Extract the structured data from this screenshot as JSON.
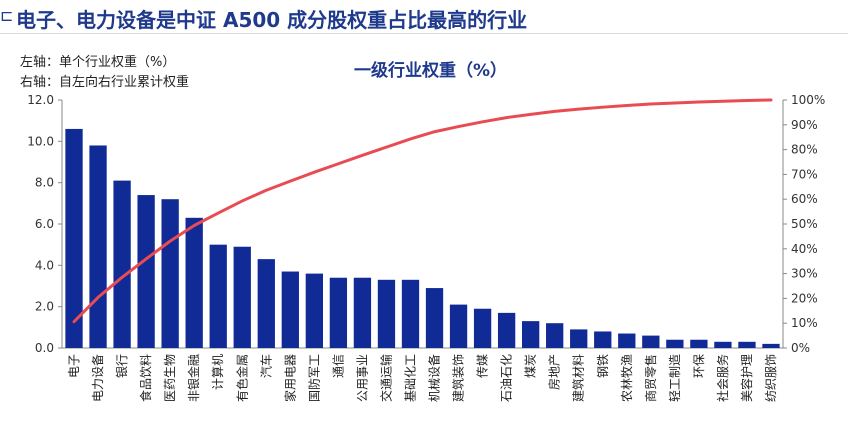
{
  "header": {
    "title": "电子、电力设备是中证 A500 成分股权重占比最高的行业"
  },
  "notes": {
    "left_axis": "左轴：单个行业权重（%）",
    "right_axis": "右轴：自左向右行业累计权重"
  },
  "chart_data": {
    "type": "bar",
    "title": "一级行业权重（%）",
    "categories": [
      "电子",
      "电力设备",
      "银行",
      "食品饮料",
      "医药生物",
      "非银金融",
      "计算机",
      "有色金属",
      "汽车",
      "家用电器",
      "国防军工",
      "通信",
      "公用事业",
      "交通运输",
      "基础化工",
      "机械设备",
      "建筑装饰",
      "传媒",
      "石油石化",
      "煤炭",
      "房地产",
      "建筑材料",
      "钢铁",
      "农林牧渔",
      "商贸零售",
      "轻工制造",
      "环保",
      "社会服务",
      "美容护理",
      "纺织服饰"
    ],
    "series": [
      {
        "values": [
          10.6,
          9.8,
          8.1,
          7.4,
          7.2,
          6.3,
          5.0,
          4.9,
          4.3,
          3.7,
          3.6,
          3.4,
          3.4,
          3.3,
          3.3,
          2.9,
          2.1,
          1.9,
          1.7,
          1.3,
          1.2,
          0.9,
          0.8,
          0.7,
          0.6,
          0.4,
          0.4,
          0.3,
          0.3,
          0.2
        ],
        "axis": "left",
        "color": "#102a96"
      },
      {
        "values": [
          10.6,
          20.4,
          28.5,
          35.9,
          43.1,
          49.4,
          54.4,
          59.3,
          63.6,
          67.3,
          70.9,
          74.3,
          77.7,
          81.0,
          84.3,
          87.2,
          89.3,
          91.2,
          92.9,
          94.2,
          95.4,
          96.3,
          97.1,
          97.8,
          98.4,
          98.8,
          99.2,
          99.5,
          99.8,
          100.0
        ],
        "axis": "right",
        "type": "line",
        "color": "#e84c52"
      }
    ],
    "ylim_left": [
      0,
      12
    ],
    "yticks_left": [
      "0.0",
      "2.0",
      "4.0",
      "6.0",
      "8.0",
      "10.0",
      "12.0"
    ],
    "ylim_right": [
      0,
      100
    ],
    "yticks_right": [
      "0%",
      "10%",
      "20%",
      "30%",
      "40%",
      "50%",
      "60%",
      "70%",
      "80%",
      "90%",
      "100%"
    ],
    "grid": false,
    "legend": "none"
  }
}
